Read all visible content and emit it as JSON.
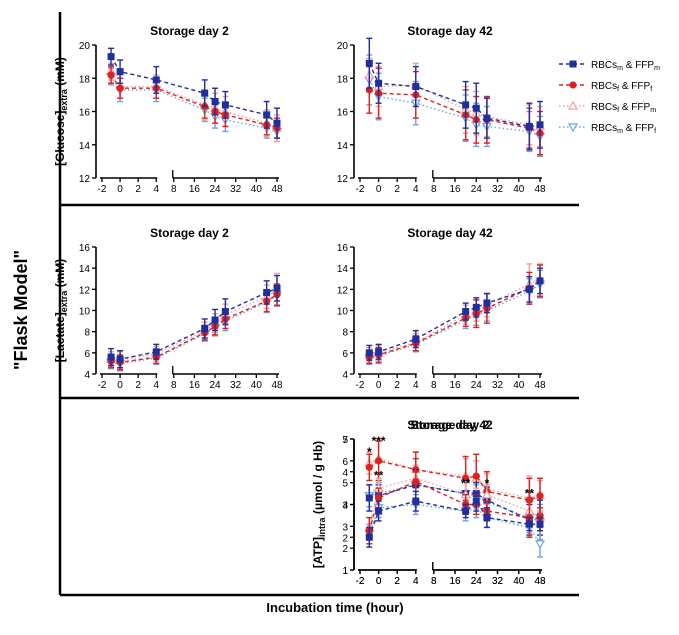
{
  "figure": {
    "side_label": "\"Flask Model\"",
    "x_label": "Incubation time (hour)"
  },
  "legend": [
    {
      "label_main": "RBCs",
      "sub1": "m",
      "mid": " & FFP",
      "sub2": "m",
      "color": "#1f2f9e",
      "marker": "square",
      "dash": "4,3"
    },
    {
      "label_main": "RBCs",
      "sub1": "f",
      "mid": " & FFP",
      "sub2": "f",
      "color": "#e0201b",
      "marker": "circle",
      "dash": "4,3"
    },
    {
      "label_main": "RBCs",
      "sub1": "f",
      "mid": " & FFP",
      "sub2": "m",
      "color": "#f2a0a0",
      "marker": "triangle-up",
      "dash": "1.5,2.5"
    },
    {
      "label_main": "RBCs",
      "sub1": "m",
      "mid": " & FFP",
      "sub2": "f",
      "color": "#6fa3de",
      "marker": "triangle-down",
      "dash": "1.5,2.5"
    }
  ],
  "chart_data": [
    {
      "type": "line",
      "row": "glucose",
      "title": "Storage day 2",
      "ylabel_main": "[Glucose]",
      "ylabel_sub": "extra",
      "ylabel_tail": " (mM)",
      "ylim": [
        12,
        20
      ],
      "yticks": [
        "12",
        "14",
        "16",
        "18",
        "20"
      ],
      "xticks": [
        "-2",
        "0",
        "2",
        "4",
        "8",
        "16",
        "24",
        "32",
        "40",
        "48"
      ],
      "x": [
        -1,
        0,
        4,
        20,
        24,
        28,
        44,
        48
      ],
      "series": [
        {
          "values": [
            19.3,
            18.4,
            17.9,
            17.1,
            16.6,
            16.4,
            15.8,
            15.3
          ],
          "err": [
            0.5,
            0.7,
            0.8,
            0.8,
            0.8,
            0.8,
            0.8,
            0.9
          ]
        },
        {
          "values": [
            18.2,
            17.4,
            17.4,
            16.3,
            16.0,
            15.8,
            15.2,
            15.0
          ],
          "err": [
            0.5,
            0.6,
            0.6,
            0.7,
            0.7,
            0.7,
            0.6,
            0.6
          ]
        },
        {
          "values": [
            18.4,
            17.5,
            17.5,
            16.4,
            16.2,
            16.0,
            15.3,
            15.0
          ],
          "err": [
            0.5,
            0.7,
            0.7,
            0.9,
            0.9,
            0.9,
            0.8,
            0.8
          ]
        },
        {
          "values": [
            18.1,
            17.3,
            17.3,
            16.1,
            15.7,
            15.5,
            15.0,
            14.8
          ],
          "err": [
            0.5,
            0.7,
            0.7,
            0.7,
            0.7,
            0.7,
            0.6,
            0.6
          ]
        }
      ],
      "annotations": []
    },
    {
      "type": "line",
      "row": "glucose",
      "title": "Storage day 42",
      "ylabel_main": "",
      "ylabel_sub": "",
      "ylabel_tail": "",
      "ylim": [
        12,
        20
      ],
      "yticks": [
        "12",
        "14",
        "16",
        "18",
        "20"
      ],
      "xticks": [
        "-2",
        "0",
        "2",
        "4",
        "8",
        "16",
        "24",
        "32",
        "40",
        "48"
      ],
      "x": [
        -1,
        0,
        4,
        20,
        24,
        28,
        44,
        48
      ],
      "series": [
        {
          "values": [
            18.9,
            17.7,
            17.5,
            16.4,
            16.2,
            15.6,
            15.1,
            15.2
          ],
          "err": [
            1.5,
            1.2,
            1.2,
            1.4,
            1.5,
            1.2,
            1.4,
            1.4
          ]
        },
        {
          "values": [
            17.3,
            17.1,
            17.0,
            15.8,
            15.5,
            15.5,
            15.0,
            14.7
          ],
          "err": [
            1.4,
            1.5,
            1.4,
            1.5,
            1.4,
            1.4,
            1.2,
            1.3
          ]
        },
        {
          "values": [
            18.2,
            17.5,
            17.6,
            16.1,
            15.9,
            15.7,
            15.2,
            15.1
          ],
          "err": [
            1.0,
            1.2,
            1.3,
            1.4,
            1.3,
            1.2,
            1.2,
            1.2
          ]
        },
        {
          "values": [
            17.9,
            16.9,
            16.5,
            15.6,
            15.2,
            15.1,
            14.8,
            14.5
          ],
          "err": [
            1.5,
            1.4,
            1.3,
            1.4,
            1.3,
            1.2,
            1.2,
            1.2
          ]
        }
      ],
      "annotations": []
    },
    {
      "type": "line",
      "row": "lactate",
      "title": "Storage day 2",
      "ylabel_main": "[Lactate]",
      "ylabel_sub": "extra",
      "ylabel_tail": " (mM)",
      "ylim": [
        4,
        16
      ],
      "yticks": [
        "4",
        "6",
        "8",
        "10",
        "12",
        "14",
        "16"
      ],
      "xticks": [
        "-2",
        "0",
        "2",
        "4",
        "8",
        "16",
        "24",
        "32",
        "40",
        "48"
      ],
      "x": [
        -1,
        0,
        4,
        20,
        24,
        28,
        44,
        48
      ],
      "series": [
        {
          "values": [
            5.6,
            5.4,
            6.1,
            8.3,
            9.1,
            9.9,
            11.7,
            12.1
          ],
          "err": [
            0.8,
            0.8,
            0.7,
            0.9,
            1.0,
            1.2,
            1.1,
            1.2
          ]
        },
        {
          "values": [
            5.2,
            5.1,
            5.6,
            7.9,
            8.5,
            9.2,
            10.9,
            11.5
          ],
          "err": [
            0.6,
            0.7,
            0.6,
            0.7,
            0.8,
            0.9,
            1.0,
            1.0
          ]
        },
        {
          "values": [
            5.4,
            5.3,
            5.9,
            8.1,
            8.8,
            9.6,
            11.3,
            12.0
          ],
          "err": [
            0.7,
            0.8,
            0.7,
            0.8,
            0.9,
            1.0,
            1.1,
            1.5
          ]
        },
        {
          "values": [
            5.1,
            5.0,
            5.5,
            7.8,
            8.4,
            9.0,
            10.8,
            11.4
          ],
          "err": [
            0.6,
            0.7,
            0.6,
            0.7,
            0.8,
            0.9,
            1.0,
            1.0
          ]
        }
      ],
      "annotations": []
    },
    {
      "type": "line",
      "row": "lactate",
      "title": "Storage day 42",
      "ylabel_main": "",
      "ylabel_sub": "",
      "ylabel_tail": "",
      "ylim": [
        4,
        16
      ],
      "yticks": [
        "4",
        "6",
        "8",
        "10",
        "12",
        "14",
        "16"
      ],
      "xticks": [
        "-2",
        "0",
        "2",
        "4",
        "8",
        "16",
        "24",
        "32",
        "40",
        "48"
      ],
      "x": [
        -1,
        0,
        4,
        20,
        24,
        28,
        44,
        48
      ],
      "series": [
        {
          "values": [
            6.0,
            6.1,
            7.3,
            9.9,
            10.3,
            10.7,
            12.0,
            12.8
          ],
          "err": [
            0.7,
            0.7,
            0.8,
            0.8,
            0.9,
            0.9,
            1.2,
            1.2
          ]
        },
        {
          "values": [
            5.6,
            5.8,
            6.9,
            9.3,
            9.7,
            10.2,
            12.1,
            12.8
          ],
          "err": [
            0.6,
            0.7,
            0.7,
            0.8,
            1.3,
            1.4,
            1.5,
            1.5
          ]
        },
        {
          "values": [
            5.8,
            6.0,
            7.0,
            9.6,
            10.0,
            10.5,
            12.5,
            12.9
          ],
          "err": [
            0.7,
            0.7,
            0.8,
            0.9,
            1.0,
            1.1,
            1.9,
            1.5
          ]
        },
        {
          "values": [
            5.5,
            5.7,
            6.8,
            9.1,
            9.5,
            10.0,
            11.8,
            12.5
          ],
          "err": [
            0.6,
            0.7,
            0.7,
            0.8,
            0.9,
            1.0,
            1.2,
            1.3
          ]
        }
      ],
      "annotations": []
    },
    {
      "type": "line",
      "row": "atp",
      "title": "Storage day 2",
      "ylabel_main": "[ATP]",
      "ylabel_sub": "intra",
      "ylabel_tail": " (μmol / g Hb)",
      "ylim": [
        1,
        7
      ],
      "yticks": [
        "1",
        "2",
        "3",
        "4",
        "5",
        "6",
        "7"
      ],
      "xticks": [
        "-2",
        "0",
        "2",
        "4",
        "8",
        "16",
        "24",
        "32",
        "40",
        "48"
      ],
      "x": [
        -1,
        0,
        4,
        20,
        24,
        28,
        44,
        48
      ],
      "series": [
        {
          "values": [
            4.3,
            4.4,
            4.9,
            4.5,
            4.5,
            4.2,
            3.3,
            3.4
          ],
          "err": [
            0.6,
            0.5,
            0.7,
            0.6,
            0.5,
            0.6,
            0.7,
            0.8
          ]
        },
        {
          "values": [
            5.7,
            6.0,
            5.6,
            5.2,
            5.3,
            4.6,
            4.2,
            4.4
          ],
          "err": [
            0.6,
            0.9,
            0.8,
            1.0,
            1.0,
            0.9,
            1.0,
            0.8
          ]
        },
        {
          "values": [
            5.9,
            6.1,
            5.6,
            5.3,
            5.2,
            4.7,
            4.3,
            4.4
          ],
          "err": [
            0.5,
            0.9,
            0.8,
            0.8,
            0.8,
            0.7,
            1.0,
            0.7
          ]
        },
        {
          "values": [
            4.4,
            4.5,
            4.9,
            4.5,
            4.4,
            4.1,
            3.4,
            3.2
          ],
          "err": [
            0.5,
            0.5,
            0.6,
            0.6,
            0.5,
            0.6,
            0.7,
            0.8
          ]
        }
      ],
      "annotations": [
        {
          "x": -1,
          "y": 6.5,
          "text": "*"
        },
        {
          "x": 0,
          "y": 7.0,
          "text": "***"
        }
      ]
    },
    {
      "type": "line",
      "row": "atp",
      "title": "Storage day 42",
      "ylabel_main": "",
      "ylabel_sub": "",
      "ylabel_tail": "",
      "ylim": [
        1,
        5
      ],
      "yticks": [
        "1",
        "2",
        "3",
        "4",
        "5"
      ],
      "xticks": [
        "-2",
        "0",
        "2",
        "4",
        "8",
        "16",
        "24",
        "32",
        "40",
        "48"
      ],
      "x": [
        -1,
        0,
        4,
        20,
        24,
        28,
        44,
        48
      ],
      "series": [
        {
          "values": [
            2.0,
            2.8,
            3.1,
            2.8,
            3.1,
            2.6,
            2.4,
            2.4
          ],
          "err": [
            0.3,
            0.3,
            0.3,
            0.2,
            0.3,
            0.3,
            0.2,
            0.2
          ]
        },
        {
          "values": [
            2.2,
            3.2,
            3.7,
            3.0,
            3.0,
            2.8,
            2.6,
            2.6
          ],
          "err": [
            0.4,
            0.3,
            0.7,
            0.3,
            0.3,
            0.3,
            0.6,
            0.3
          ]
        },
        {
          "values": [
            2.3,
            3.5,
            3.8,
            3.3,
            3.1,
            3.3,
            2.8,
            2.6
          ],
          "err": [
            0.3,
            0.3,
            0.4,
            0.4,
            0.4,
            0.3,
            0.4,
            0.3
          ]
        },
        {
          "values": [
            2.1,
            2.9,
            3.0,
            2.8,
            2.9,
            2.6,
            2.3,
            1.8
          ],
          "err": [
            0.3,
            0.3,
            0.3,
            0.3,
            0.3,
            0.3,
            0.3,
            0.4
          ]
        }
      ],
      "annotations": [
        {
          "x": 0,
          "y": 3.95,
          "text": "**"
        },
        {
          "x": 20,
          "y": 3.7,
          "text": "**"
        },
        {
          "x": 28,
          "y": 3.7,
          "text": "*"
        },
        {
          "x": 44,
          "y": 3.4,
          "text": "**"
        }
      ]
    }
  ]
}
